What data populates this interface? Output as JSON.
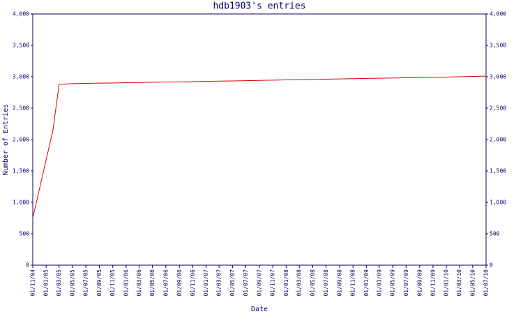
{
  "chart_data": {
    "type": "line",
    "title": "hdb1903's entries",
    "x_label": "Date",
    "y_label": "Number of Entries",
    "x": [
      "2004-11-01",
      "2005-02-01",
      "2005-03-01",
      "2005-05-01",
      "2005-07-01",
      "2005-09-01",
      "2005-11-01",
      "2006-01-01",
      "2006-03-01",
      "2006-05-01",
      "2006-07-01",
      "2006-09-01",
      "2006-11-01",
      "2007-01-01",
      "2007-03-01",
      "2007-05-01",
      "2007-07-01",
      "2007-09-01",
      "2007-11-01",
      "2008-01-01",
      "2008-03-01",
      "2008-05-01",
      "2008-07-01",
      "2008-09-01",
      "2008-11-01",
      "2009-01-01",
      "2009-03-01",
      "2009-05-01",
      "2009-07-01",
      "2009-09-01",
      "2009-11-01",
      "2010-01-01",
      "2010-03-01",
      "2010-05-01",
      "2010-07-01"
    ],
    "series": [
      {
        "name": "Entries",
        "color": "#dd0000",
        "values": [
          750,
          2150,
          2880,
          2890,
          2895,
          2898,
          2900,
          2905,
          2908,
          2912,
          2915,
          2918,
          2922,
          2926,
          2930,
          2934,
          2938,
          2942,
          2946,
          2950,
          2954,
          2957,
          2961,
          2965,
          2969,
          2973,
          2976,
          2980,
          2984,
          2988,
          2992,
          2996,
          3000,
          3005,
          3010
        ]
      }
    ],
    "xlim": [
      "2004-11-01",
      "2010-07-01"
    ],
    "xticks": [
      {
        "value": "2004-11-01",
        "label": "01/11/04"
      },
      {
        "value": "2005-01-01",
        "label": "01/01/05"
      },
      {
        "value": "2005-03-01",
        "label": "01/03/05"
      },
      {
        "value": "2005-05-01",
        "label": "01/05/05"
      },
      {
        "value": "2005-07-01",
        "label": "01/07/05"
      },
      {
        "value": "2005-09-01",
        "label": "01/09/05"
      },
      {
        "value": "2005-11-01",
        "label": "01/11/05"
      },
      {
        "value": "2006-01-01",
        "label": "01/01/06"
      },
      {
        "value": "2006-03-01",
        "label": "01/03/06"
      },
      {
        "value": "2006-05-01",
        "label": "01/05/06"
      },
      {
        "value": "2006-07-01",
        "label": "01/07/06"
      },
      {
        "value": "2006-09-01",
        "label": "01/09/06"
      },
      {
        "value": "2006-11-01",
        "label": "01/11/06"
      },
      {
        "value": "2007-01-01",
        "label": "01/01/07"
      },
      {
        "value": "2007-03-01",
        "label": "01/03/07"
      },
      {
        "value": "2007-05-01",
        "label": "01/05/07"
      },
      {
        "value": "2007-07-01",
        "label": "01/07/07"
      },
      {
        "value": "2007-09-01",
        "label": "01/09/07"
      },
      {
        "value": "2007-11-01",
        "label": "01/11/07"
      },
      {
        "value": "2008-01-01",
        "label": "01/01/08"
      },
      {
        "value": "2008-03-01",
        "label": "01/03/08"
      },
      {
        "value": "2008-05-01",
        "label": "01/05/08"
      },
      {
        "value": "2008-07-01",
        "label": "01/07/08"
      },
      {
        "value": "2008-09-01",
        "label": "01/09/08"
      },
      {
        "value": "2008-11-01",
        "label": "01/11/08"
      },
      {
        "value": "2009-01-01",
        "label": "01/01/09"
      },
      {
        "value": "2009-03-01",
        "label": "01/03/09"
      },
      {
        "value": "2009-05-01",
        "label": "01/05/09"
      },
      {
        "value": "2009-07-01",
        "label": "01/07/09"
      },
      {
        "value": "2009-09-01",
        "label": "01/09/09"
      },
      {
        "value": "2009-11-01",
        "label": "01/11/09"
      },
      {
        "value": "2010-01-01",
        "label": "01/01/10"
      },
      {
        "value": "2010-03-01",
        "label": "01/03/10"
      },
      {
        "value": "2010-05-01",
        "label": "01/05/10"
      },
      {
        "value": "2010-07-01",
        "label": "01/07/10"
      }
    ],
    "ylim": [
      0,
      4000
    ],
    "yticks": [
      0,
      500,
      {
        "value": 1000,
        "label": "1,000"
      },
      {
        "value": 1500,
        "label": "1,500"
      },
      {
        "value": 2000,
        "label": "2,000"
      },
      {
        "value": 2500,
        "label": "2,500"
      },
      {
        "value": 3000,
        "label": "3,000"
      },
      {
        "value": 3500,
        "label": "3,500"
      },
      {
        "value": 4000,
        "label": "4,000"
      }
    ],
    "y_axis_right": true
  }
}
